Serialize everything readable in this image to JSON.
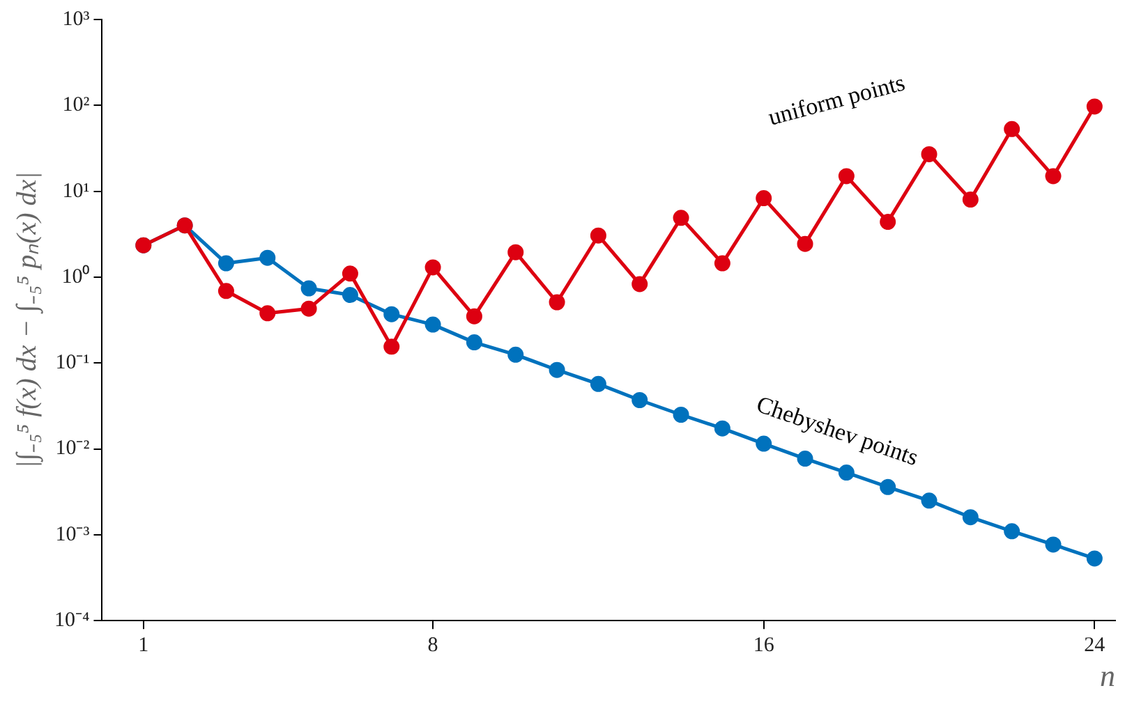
{
  "chart_data": {
    "type": "line",
    "xlabel": "n",
    "ylabel": "|∫₋₅⁵ f(x) dx − ∫₋₅⁵ pₙ(x) dx|",
    "x": [
      1,
      2,
      3,
      4,
      5,
      6,
      7,
      8,
      9,
      10,
      11,
      12,
      13,
      14,
      15,
      16,
      17,
      18,
      19,
      20,
      21,
      22,
      23,
      24
    ],
    "series": [
      {
        "name": "uniform points",
        "color": "#dd0011",
        "values": [
          2.35,
          4.0,
          0.69,
          0.38,
          0.43,
          1.1,
          0.155,
          1.3,
          0.35,
          1.95,
          0.51,
          3.05,
          0.83,
          4.9,
          1.45,
          8.3,
          2.44,
          15,
          4.4,
          27,
          8.0,
          53,
          15,
          97
        ]
      },
      {
        "name": "Chebyshev points",
        "color": "#0072bd",
        "values": [
          2.35,
          4.0,
          1.45,
          1.68,
          0.74,
          0.62,
          0.37,
          0.28,
          0.174,
          0.125,
          0.083,
          0.057,
          0.037,
          0.025,
          0.0173,
          0.0115,
          0.0077,
          0.0053,
          0.0036,
          0.0025,
          0.0016,
          0.0011,
          0.00077,
          0.00053
        ]
      }
    ],
    "log": "y",
    "xlim": [
      0,
      24.5
    ],
    "xticks": [
      1,
      8,
      16,
      24
    ],
    "ylim": [
      0.0001,
      1000
    ],
    "yticks": [
      {
        "value": 0.0001,
        "label": "10⁻⁴"
      },
      {
        "value": 0.001,
        "label": "10⁻³"
      },
      {
        "value": 0.01,
        "label": "10⁻²"
      },
      {
        "value": 0.1,
        "label": "10⁻¹"
      },
      {
        "value": 1,
        "label": "10⁰"
      },
      {
        "value": 10,
        "label": "10¹"
      },
      {
        "value": 100,
        "label": "10²"
      },
      {
        "value": 1000,
        "label": "10³"
      }
    ],
    "marker": "circle",
    "grid": false,
    "legend": false
  }
}
